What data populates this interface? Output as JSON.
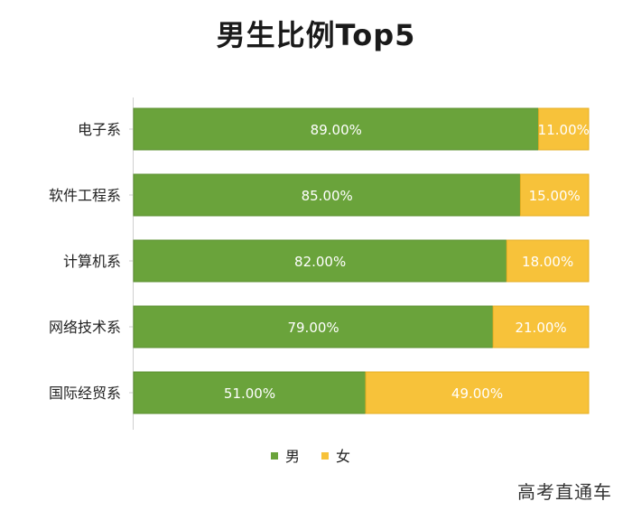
{
  "chart_data": {
    "type": "bar",
    "stacked": true,
    "orientation": "horizontal",
    "percent_stacked": true,
    "title": "男生比例Top5",
    "xlabel": "",
    "ylabel": "",
    "xlim": [
      0,
      100
    ],
    "grid": false,
    "legend_position": "bottom",
    "categories": [
      "电子系",
      "软件工程系",
      "计算机系",
      "网络技术系",
      "国际经贸系"
    ],
    "series": [
      {
        "name": "男",
        "color": "#6aa33b",
        "values": [
          89,
          85,
          82,
          79,
          51
        ],
        "labels": [
          "89.00%",
          "85.00%",
          "82.00%",
          "79.00%",
          "51.00%"
        ]
      },
      {
        "name": "女",
        "color": "#f7c23a",
        "values": [
          11,
          15,
          18,
          21,
          49
        ],
        "labels": [
          "11.00%",
          "15.00%",
          "18.00%",
          "21.00%",
          "49.00%"
        ]
      }
    ]
  },
  "watermark": "高考直通车"
}
